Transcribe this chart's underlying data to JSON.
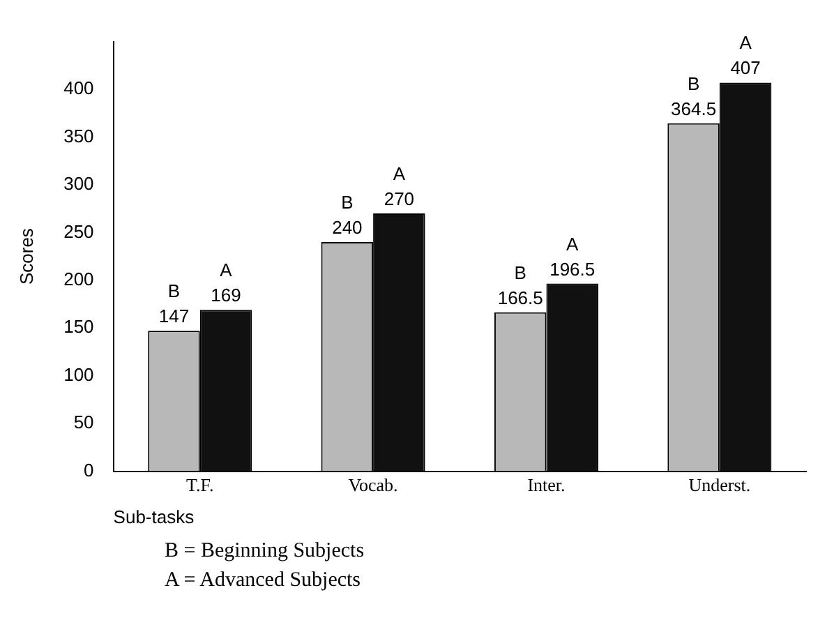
{
  "chart_data": {
    "type": "bar",
    "xlabel": "Sub-tasks",
    "ylabel": "Scores",
    "categories": [
      "T.F.",
      "Vocab.",
      "Inter.",
      "Underst."
    ],
    "series": [
      {
        "name": "B",
        "color": "#b8b8b8",
        "values": [
          147,
          240,
          166.5,
          364.5
        ]
      },
      {
        "name": "A",
        "color": "#111111",
        "values": [
          169,
          270,
          196.5,
          407
        ]
      }
    ],
    "ylim": [
      0,
      450
    ],
    "yticks": [
      0,
      50,
      100,
      150,
      200,
      250,
      300,
      350,
      400
    ],
    "grid": false,
    "legend": false,
    "data_labels": true,
    "annotations": [
      "B = Beginning Subjects",
      "A = Advanced Subjects"
    ]
  }
}
